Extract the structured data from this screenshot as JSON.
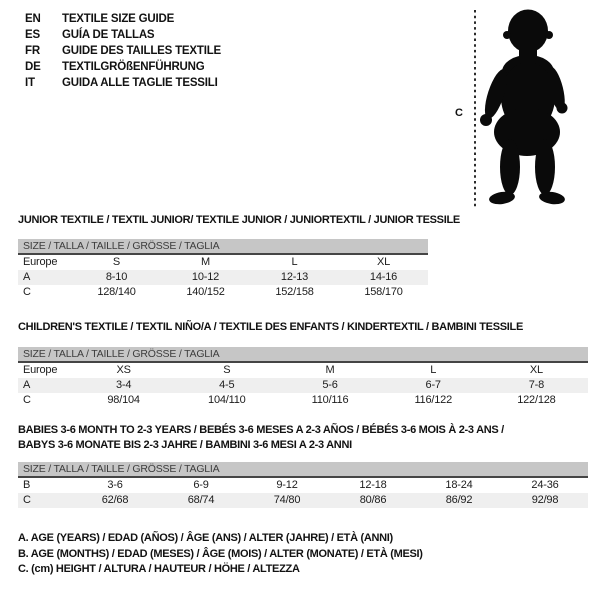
{
  "languages": [
    {
      "code": "EN",
      "label": "TEXTILE SIZE GUIDE"
    },
    {
      "code": "ES",
      "label": "GUÍA DE TALLAS"
    },
    {
      "code": "FR",
      "label": "GUIDE DES TAILLES TEXTILE"
    },
    {
      "code": "DE",
      "label": "TEXTILGRÖßENFÜHRUNG"
    },
    {
      "code": "IT",
      "label": "GUIDA ALLE TAGLIE TESSILI"
    }
  ],
  "figure": {
    "height_label": "C"
  },
  "colors": {
    "header_bar_bg": "#c6c6c6",
    "header_bar_text": "#3d3d3d",
    "row_alt_bg": "#efefef",
    "silhouette": "#0a0a0a"
  },
  "tables": [
    {
      "title": "JUNIOR TEXTILE / TEXTIL JUNIOR/ TEXTILE JUNIOR / JUNIORTEXTIL / JUNIOR TESSILE",
      "size_header": "SIZE / TALLA / TAILLE / GRÖSSE / TAGLIA",
      "rows": [
        [
          "Europe",
          "S",
          "M",
          "L",
          "XL"
        ],
        [
          "A",
          "8-10",
          "10-12",
          "12-13",
          "14-16"
        ],
        [
          "C",
          "128/140",
          "140/152",
          "152/158",
          "158/170"
        ]
      ]
    },
    {
      "title": "CHILDREN'S TEXTILE / TEXTIL NIÑO/A / TEXTILE DES ENFANTS / KINDERTEXTIL / BAMBINI TESSILE",
      "size_header": "SIZE / TALLA / TAILLE / GRÖSSE / TAGLIA",
      "rows": [
        [
          "Europe",
          "XS",
          "S",
          "M",
          "L",
          "XL"
        ],
        [
          "A",
          "3-4",
          "4-5",
          "5-6",
          "6-7",
          "7-8"
        ],
        [
          "C",
          "98/104",
          "104/110",
          "110/116",
          "116/122",
          "122/128"
        ]
      ]
    },
    {
      "title": "BABIES 3-6 MONTH TO 2-3 YEARS / BEBÉS 3-6 MESES A 2-3 AÑOS / BÉBÉS 3-6 MOIS À 2-3 ANS /\nBABYS 3-6 MONATE BIS 2-3 JAHRE / BAMBINI 3-6 MESI A 2-3 ANNI",
      "size_header": "SIZE / TALLA / TAILLE / GRÖSSE / TAGLIA",
      "rows": [
        [
          "B",
          "3-6",
          "6-9",
          "9-12",
          "12-18",
          "18-24",
          "24-36"
        ],
        [
          "C",
          "62/68",
          "68/74",
          "74/80",
          "80/86",
          "86/92",
          "92/98"
        ]
      ]
    }
  ],
  "footnotes": [
    "A. AGE (YEARS) / EDAD (AÑOS) / ÂGE (ANS) / ALTER (JAHRE) / ETÀ (ANNI)",
    "B. AGE (MONTHS) / EDAD (MESES) / ÂGE (MOIS) / ALTER (MONATE) / ETÀ (MESI)",
    "C. (cm) HEIGHT / ALTURA / HAUTEUR / HÖHE / ALTEZZA"
  ]
}
